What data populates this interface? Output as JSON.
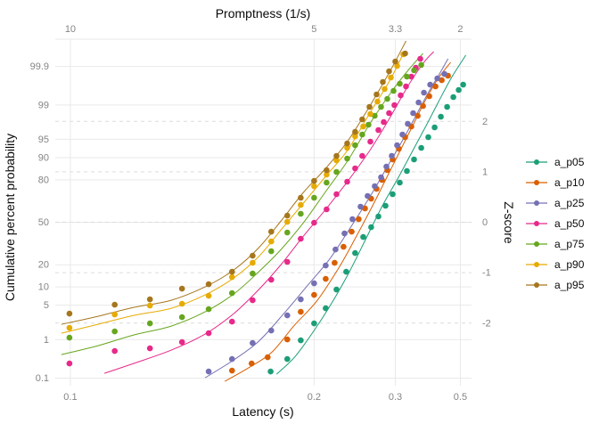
{
  "chart_data": {
    "type": "scatter",
    "top_axis_title": "Promptness (1/s)",
    "bottom_axis_title": "Latency (s)",
    "left_axis_title": "Cumulative percent probability",
    "right_axis_title": "Z-score",
    "x_scale": "linear in promptness = 1/latency; bottom labels show latency in seconds",
    "y_scale": "normal probability (probit); left labels cumulative percent = 100*CDF(z), right labels z-score",
    "x_range_promptness": [
      10.31,
      1.77
    ],
    "y_range_z": [
      3.63,
      -3.24
    ],
    "x_ticks_bottom": [
      {
        "label": "0.1",
        "promptness": 10
      },
      {
        "label": "0.2",
        "promptness": 5
      },
      {
        "label": "0.3",
        "promptness": 3.3333
      },
      {
        "label": "0.5",
        "promptness": 2
      }
    ],
    "x_ticks_top": [
      {
        "label": "10",
        "promptness": 10
      },
      {
        "label": "5",
        "promptness": 5
      },
      {
        "label": "3.3",
        "promptness": 3.3333
      },
      {
        "label": "2",
        "promptness": 2
      }
    ],
    "y_ticks_left_percent": [
      "99.9",
      "99",
      "95",
      "90",
      "80",
      "50",
      "20",
      "10",
      "5",
      "1",
      "0.1"
    ],
    "y_ticks_right_z": [
      "2",
      "1",
      "0",
      "-1",
      "-2"
    ],
    "grid": {
      "solid_color": "#e9e9e9",
      "dashed_color": "#dcdcdc"
    },
    "series": [
      {
        "name": "a_p05",
        "color": "#1b9e77",
        "points": [
          [
            0.1697,
            -2.96
          ],
          [
            0.1802,
            -2.712
          ],
          [
            0.1896,
            -2.341
          ],
          [
            0.2,
            -2.005
          ],
          [
            0.21,
            -1.705
          ],
          [
            0.2202,
            -1.334
          ],
          [
            0.2304,
            -0.981
          ],
          [
            0.2405,
            -0.61
          ],
          [
            0.2505,
            -0.292
          ],
          [
            0.2612,
            -0.097
          ],
          [
            0.2716,
            0.115
          ],
          [
            0.2829,
            0.327
          ],
          [
            0.2951,
            0.557
          ],
          [
            0.3085,
            0.786
          ],
          [
            0.3231,
            1.016
          ],
          [
            0.3391,
            1.246
          ],
          [
            0.3569,
            1.475
          ],
          [
            0.3765,
            1.687
          ],
          [
            0.3956,
            1.881
          ],
          [
            0.4168,
            2.094
          ],
          [
            0.4403,
            2.288
          ],
          [
            0.4667,
            2.482
          ],
          [
            0.4919,
            2.624
          ],
          [
            0.5151,
            2.73
          ]
        ],
        "line": [
          [
            0.1733,
            -3.013
          ],
          [
            0.1851,
            -2.677
          ],
          [
            0.1985,
            -2.2
          ],
          [
            0.2141,
            -1.652
          ],
          [
            0.2323,
            -1.034
          ],
          [
            0.254,
            -0.327
          ],
          [
            0.2786,
            0.345
          ],
          [
            0.305,
            0.875
          ],
          [
            0.3329,
            1.369
          ],
          [
            0.3664,
            1.864
          ],
          [
            0.4075,
            2.376
          ],
          [
            0.4588,
            2.871
          ],
          [
            0.5301,
            3.313
          ]
        ]
      },
      {
        "name": "a_p10",
        "color": "#d95f02",
        "points": [
          [
            0.1496,
            -2.942
          ],
          [
            0.1592,
            -2.8
          ],
          [
            0.168,
            -2.677
          ],
          [
            0.1802,
            -2.323
          ],
          [
            0.1896,
            -1.776
          ],
          [
            0.2,
            -1.44
          ],
          [
            0.21,
            -1.122
          ],
          [
            0.2184,
            -0.804
          ],
          [
            0.2275,
            -0.486
          ],
          [
            0.2364,
            -0.186
          ],
          [
            0.2448,
            0.062
          ],
          [
            0.2528,
            0.274
          ],
          [
            0.2612,
            0.468
          ],
          [
            0.269,
            0.663
          ],
          [
            0.2772,
            0.839
          ],
          [
            0.2859,
            1.034
          ],
          [
            0.2951,
            1.246
          ],
          [
            0.3067,
            1.458
          ],
          [
            0.3193,
            1.687
          ],
          [
            0.3329,
            1.899
          ],
          [
            0.3478,
            2.111
          ],
          [
            0.3616,
            2.306
          ],
          [
            0.3792,
            2.5
          ],
          [
            0.3985,
            2.694
          ],
          [
            0.42,
            2.818
          ],
          [
            0.4439,
            2.906
          ]
        ],
        "line": [
          [
            0.1464,
            -3.154
          ],
          [
            0.1583,
            -2.871
          ],
          [
            0.1706,
            -2.571
          ],
          [
            0.1851,
            -2.041
          ],
          [
            0.2022,
            -1.564
          ],
          [
            0.2229,
            -0.892
          ],
          [
            0.2427,
            -0.256
          ],
          [
            0.2638,
            0.345
          ],
          [
            0.2844,
            0.875
          ],
          [
            0.3085,
            1.405
          ],
          [
            0.335,
            1.899
          ],
          [
            0.3664,
            2.394
          ],
          [
            0.4075,
            2.853
          ],
          [
            0.455,
            3.171
          ]
        ]
      },
      {
        "name": "a_p25",
        "color": "#7570b3",
        "points": [
          [
            0.1396,
            -2.96
          ],
          [
            0.1496,
            -2.712
          ],
          [
            0.1597,
            -2.394
          ],
          [
            0.1701,
            -2.147
          ],
          [
            0.1802,
            -1.846
          ],
          [
            0.1896,
            -1.528
          ],
          [
            0.2,
            -1.21
          ],
          [
            0.21,
            -0.857
          ],
          [
            0.2193,
            -0.539
          ],
          [
            0.2285,
            -0.221
          ],
          [
            0.2374,
            0.062
          ],
          [
            0.2471,
            0.309
          ],
          [
            0.2563,
            0.521
          ],
          [
            0.2663,
            0.716
          ],
          [
            0.2758,
            0.892
          ],
          [
            0.2844,
            1.104
          ],
          [
            0.2936,
            1.316
          ],
          [
            0.3033,
            1.528
          ],
          [
            0.3138,
            1.74
          ],
          [
            0.325,
            1.952
          ],
          [
            0.337,
            2.164
          ],
          [
            0.35,
            2.376
          ],
          [
            0.364,
            2.571
          ],
          [
            0.3818,
            2.73
          ],
          [
            0.4044,
            2.853
          ],
          [
            0.4299,
            2.942
          ]
        ],
        "line": [
          [
            0.1382,
            -3.083
          ],
          [
            0.1504,
            -2.73
          ],
          [
            0.163,
            -2.359
          ],
          [
            0.1779,
            -1.811
          ],
          [
            0.195,
            -1.246
          ],
          [
            0.2141,
            -0.716
          ],
          [
            0.2374,
            -0.044
          ],
          [
            0.2638,
            0.61
          ],
          [
            0.2904,
            1.193
          ],
          [
            0.3156,
            1.652
          ],
          [
            0.3434,
            2.111
          ],
          [
            0.3765,
            2.571
          ],
          [
            0.4136,
            2.959
          ],
          [
            0.4439,
            3.242
          ]
        ]
      },
      {
        "name": "a_p50",
        "color": "#e7298a",
        "points": [
          [
            0.0998,
            -2.8
          ],
          [
            0.11,
            -2.553
          ],
          [
            0.1195,
            -2.5
          ],
          [
            0.1297,
            -2.376
          ],
          [
            0.1396,
            -2.2
          ],
          [
            0.1496,
            -1.97
          ],
          [
            0.1597,
            -1.546
          ],
          [
            0.1701,
            -1.14
          ],
          [
            0.1802,
            -0.786
          ],
          [
            0.1896,
            -0.327
          ],
          [
            0.2,
            -0.009
          ],
          [
            0.2108,
            0.256
          ],
          [
            0.2202,
            0.557
          ],
          [
            0.2314,
            0.804
          ],
          [
            0.2405,
            1.069
          ],
          [
            0.2493,
            1.316
          ],
          [
            0.26,
            1.599
          ],
          [
            0.2716,
            1.829
          ],
          [
            0.28,
            1.988
          ],
          [
            0.2889,
            2.164
          ],
          [
            0.2984,
            2.323
          ],
          [
            0.3102,
            2.518
          ],
          [
            0.3212,
            2.694
          ],
          [
            0.3329,
            2.889
          ],
          [
            0.3434,
            3.065
          ],
          [
            0.3545,
            3.242
          ]
        ],
        "line": [
          [
            0.1075,
            -2.995
          ],
          [
            0.1149,
            -2.8
          ],
          [
            0.1261,
            -2.535
          ],
          [
            0.1382,
            -2.217
          ],
          [
            0.1504,
            -1.811
          ],
          [
            0.163,
            -1.334
          ],
          [
            0.1761,
            -0.839
          ],
          [
            0.1916,
            -0.274
          ],
          [
            0.21,
            0.256
          ],
          [
            0.2323,
            0.821
          ],
          [
            0.26,
            1.44
          ],
          [
            0.2904,
            2.076
          ],
          [
            0.327,
            2.73
          ],
          [
            0.364,
            3.171
          ],
          [
            0.3928,
            3.383
          ]
        ]
      },
      {
        "name": "a_p75",
        "color": "#66a61e",
        "points": [
          [
            0.0998,
            -2.288
          ],
          [
            0.11,
            -2.164
          ],
          [
            0.1195,
            -2.005
          ],
          [
            0.1297,
            -1.882
          ],
          [
            0.1396,
            -1.723
          ],
          [
            0.1496,
            -1.405
          ],
          [
            0.1597,
            -1.016
          ],
          [
            0.1701,
            -0.574
          ],
          [
            0.1802,
            -0.203
          ],
          [
            0.1896,
            0.168
          ],
          [
            0.2,
            0.486
          ],
          [
            0.2108,
            0.786
          ],
          [
            0.2202,
            0.998
          ],
          [
            0.2314,
            1.263
          ],
          [
            0.2405,
            1.528
          ],
          [
            0.2493,
            1.74
          ],
          [
            0.2575,
            1.935
          ],
          [
            0.2663,
            2.111
          ],
          [
            0.2758,
            2.288
          ],
          [
            0.2859,
            2.447
          ],
          [
            0.2967,
            2.606
          ],
          [
            0.3085,
            2.747
          ],
          [
            0.3231,
            2.889
          ],
          [
            0.3391,
            3.013
          ],
          [
            0.3569,
            3.119
          ]
        ],
        "line": [
          [
            0.0982,
            -2.624
          ],
          [
            0.106,
            -2.447
          ],
          [
            0.1149,
            -2.235
          ],
          [
            0.1261,
            -2.058
          ],
          [
            0.1382,
            -1.776
          ],
          [
            0.1504,
            -1.423
          ],
          [
            0.163,
            -0.981
          ],
          [
            0.1761,
            -0.539
          ],
          [
            0.1916,
            -0.009
          ],
          [
            0.21,
            0.61
          ],
          [
            0.2323,
            1.228
          ],
          [
            0.26,
            1.97
          ],
          [
            0.292,
            2.571
          ],
          [
            0.327,
            3.03
          ],
          [
            0.3616,
            3.348
          ]
        ]
      },
      {
        "name": "a_p90",
        "color": "#e6ab02",
        "points": [
          [
            0.0998,
            -2.094
          ],
          [
            0.11,
            -1.829
          ],
          [
            0.1195,
            -1.652
          ],
          [
            0.1297,
            -1.617
          ],
          [
            0.1396,
            -1.458
          ],
          [
            0.1496,
            -1.087
          ],
          [
            0.1597,
            -0.804
          ],
          [
            0.1701,
            -0.38
          ],
          [
            0.1802,
            0.009
          ],
          [
            0.1896,
            0.345
          ],
          [
            0.2,
            0.716
          ],
          [
            0.2108,
            0.945
          ],
          [
            0.2202,
            1.228
          ],
          [
            0.2314,
            1.475
          ],
          [
            0.2405,
            1.705
          ],
          [
            0.2505,
            1.899
          ],
          [
            0.26,
            2.147
          ],
          [
            0.2703,
            2.394
          ],
          [
            0.2814,
            2.642
          ],
          [
            0.292,
            2.871
          ],
          [
            0.3033,
            3.101
          ],
          [
            0.3156,
            3.33
          ]
        ],
        "line": [
          [
            0.0982,
            -2.2
          ],
          [
            0.106,
            -2.023
          ],
          [
            0.1149,
            -1.846
          ],
          [
            0.1261,
            -1.705
          ],
          [
            0.1382,
            -1.44
          ],
          [
            0.1504,
            -1.104
          ],
          [
            0.163,
            -0.68
          ],
          [
            0.1761,
            -0.15
          ],
          [
            0.1916,
            0.38
          ],
          [
            0.21,
            0.91
          ],
          [
            0.2323,
            1.44
          ],
          [
            0.26,
            2.182
          ],
          [
            0.2904,
            2.818
          ],
          [
            0.3156,
            3.348
          ]
        ]
      },
      {
        "name": "a_p95",
        "color": "#a6761d",
        "points": [
          [
            0.0998,
            -1.811
          ],
          [
            0.11,
            -1.634
          ],
          [
            0.1195,
            -1.528
          ],
          [
            0.1297,
            -1.316
          ],
          [
            0.1396,
            -1.228
          ],
          [
            0.1496,
            -0.981
          ],
          [
            0.1597,
            -0.663
          ],
          [
            0.1701,
            -0.186
          ],
          [
            0.1802,
            0.133
          ],
          [
            0.1896,
            0.486
          ],
          [
            0.2,
            0.821
          ],
          [
            0.2108,
            1.034
          ],
          [
            0.2202,
            1.316
          ],
          [
            0.2314,
            1.564
          ],
          [
            0.2405,
            1.793
          ],
          [
            0.2493,
            2.041
          ],
          [
            0.2588,
            2.288
          ],
          [
            0.269,
            2.535
          ],
          [
            0.2786,
            2.783
          ],
          [
            0.2889,
            2.995
          ],
          [
            0.3,
            3.189
          ],
          [
            0.3193,
            3.348
          ]
        ],
        "line": [
          [
            0.0982,
            -2.023
          ],
          [
            0.106,
            -1.864
          ],
          [
            0.1149,
            -1.687
          ],
          [
            0.1261,
            -1.546
          ],
          [
            0.1382,
            -1.281
          ],
          [
            0.1504,
            -0.945
          ],
          [
            0.163,
            -0.504
          ],
          [
            0.1761,
            0.027
          ],
          [
            0.1916,
            0.592
          ],
          [
            0.21,
            1.069
          ],
          [
            0.2323,
            1.617
          ],
          [
            0.26,
            2.323
          ],
          [
            0.2904,
            2.995
          ],
          [
            0.3212,
            3.595
          ]
        ]
      }
    ],
    "note": "cumulative percent probability = 100 * normal CDF of z"
  }
}
